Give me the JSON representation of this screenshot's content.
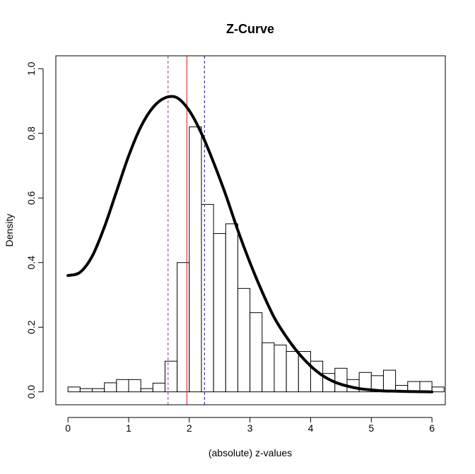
{
  "chart_data": {
    "type": "bar",
    "title": "Z-Curve",
    "xlabel": "(absolute) z-values",
    "ylabel": "Density",
    "xlim": [
      -0.2,
      6.22
    ],
    "ylim": [
      -0.04,
      1.04
    ],
    "x_ticks": [
      0,
      1,
      2,
      3,
      4,
      5,
      6
    ],
    "y_ticks": [
      0.0,
      0.2,
      0.4,
      0.6,
      0.8,
      1.0
    ],
    "x_tick_labels": [
      "0",
      "1",
      "2",
      "3",
      "4",
      "5",
      "6"
    ],
    "y_tick_labels": [
      "0.0",
      "0.2",
      "0.4",
      "0.6",
      "0.8",
      "1.0"
    ],
    "histogram": {
      "bin_width": 0.2,
      "bin_start": 0.0,
      "values": [
        0.015,
        0.01,
        0.01,
        0.028,
        0.038,
        0.038,
        0.01,
        0.027,
        0.095,
        0.4,
        0.82,
        0.58,
        0.49,
        0.52,
        0.32,
        0.245,
        0.152,
        0.145,
        0.125,
        0.125,
        0.095,
        0.057,
        0.073,
        0.038,
        0.06,
        0.05,
        0.067,
        0.02,
        0.032,
        0.032,
        0.015
      ]
    },
    "curve": {
      "name": "",
      "color": "#000000",
      "x": [
        0.0,
        0.2,
        0.4,
        0.6,
        0.8,
        1.0,
        1.2,
        1.4,
        1.6,
        1.8,
        2.0,
        2.2,
        2.4,
        2.6,
        2.8,
        3.0,
        3.2,
        3.4,
        3.6,
        3.8,
        4.0,
        4.2,
        4.4,
        4.6,
        4.8,
        5.0,
        5.2,
        5.4,
        5.6,
        5.8,
        6.0
      ],
      "y": [
        0.36,
        0.37,
        0.42,
        0.51,
        0.62,
        0.73,
        0.82,
        0.88,
        0.91,
        0.91,
        0.87,
        0.8,
        0.71,
        0.61,
        0.5,
        0.4,
        0.31,
        0.23,
        0.17,
        0.12,
        0.08,
        0.05,
        0.03,
        0.018,
        0.01,
        0.006,
        0.003,
        0.002,
        0.001,
        0.0005,
        0.0
      ]
    },
    "vlines": [
      {
        "x": 1.65,
        "color": "#8b3a8b",
        "style": "dashed"
      },
      {
        "x": 1.96,
        "color": "#ff0000",
        "style": "solid"
      },
      {
        "x": 2.25,
        "color": "#0000ff",
        "style": "dashed"
      }
    ],
    "grid": false
  }
}
